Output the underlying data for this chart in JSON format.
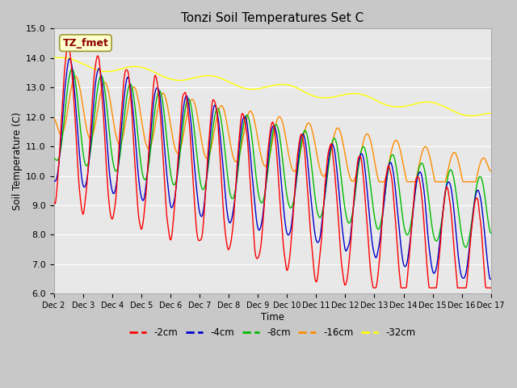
{
  "title": "Tonzi Soil Temperatures Set C",
  "xlabel": "Time",
  "ylabel": "Soil Temperature (C)",
  "ylim": [
    6.0,
    15.0
  ],
  "yticks": [
    6.0,
    7.0,
    8.0,
    9.0,
    10.0,
    11.0,
    12.0,
    13.0,
    14.0,
    15.0
  ],
  "xtick_labels": [
    "Dec 2",
    "Dec 3",
    "Dec 4",
    "Dec 5",
    "Dec 6",
    "Dec 7",
    "Dec 8",
    "Dec 9",
    "Dec 10",
    "Dec 11",
    "Dec 12",
    "Dec 13",
    "Dec 14",
    "Dec 15",
    "Dec 16",
    "Dec 17"
  ],
  "annotation_text": "TZ_fmet",
  "annotation_color": "#8B0000",
  "annotation_bg": "#FFFFCC",
  "annotation_border": "#999933",
  "line_colors": {
    "-2cm": "#FF0000",
    "-4cm": "#0000CC",
    "-8cm": "#00BB00",
    "-16cm": "#FF8C00",
    "-32cm": "#FFFF00"
  },
  "legend_labels": [
    "-2cm",
    "-4cm",
    "-8cm",
    "-16cm",
    "-32cm"
  ],
  "fig_bg": "#C8C8C8",
  "plot_bg": "#E8E8E8",
  "grid_color": "#FFFFFF",
  "n_points": 720
}
